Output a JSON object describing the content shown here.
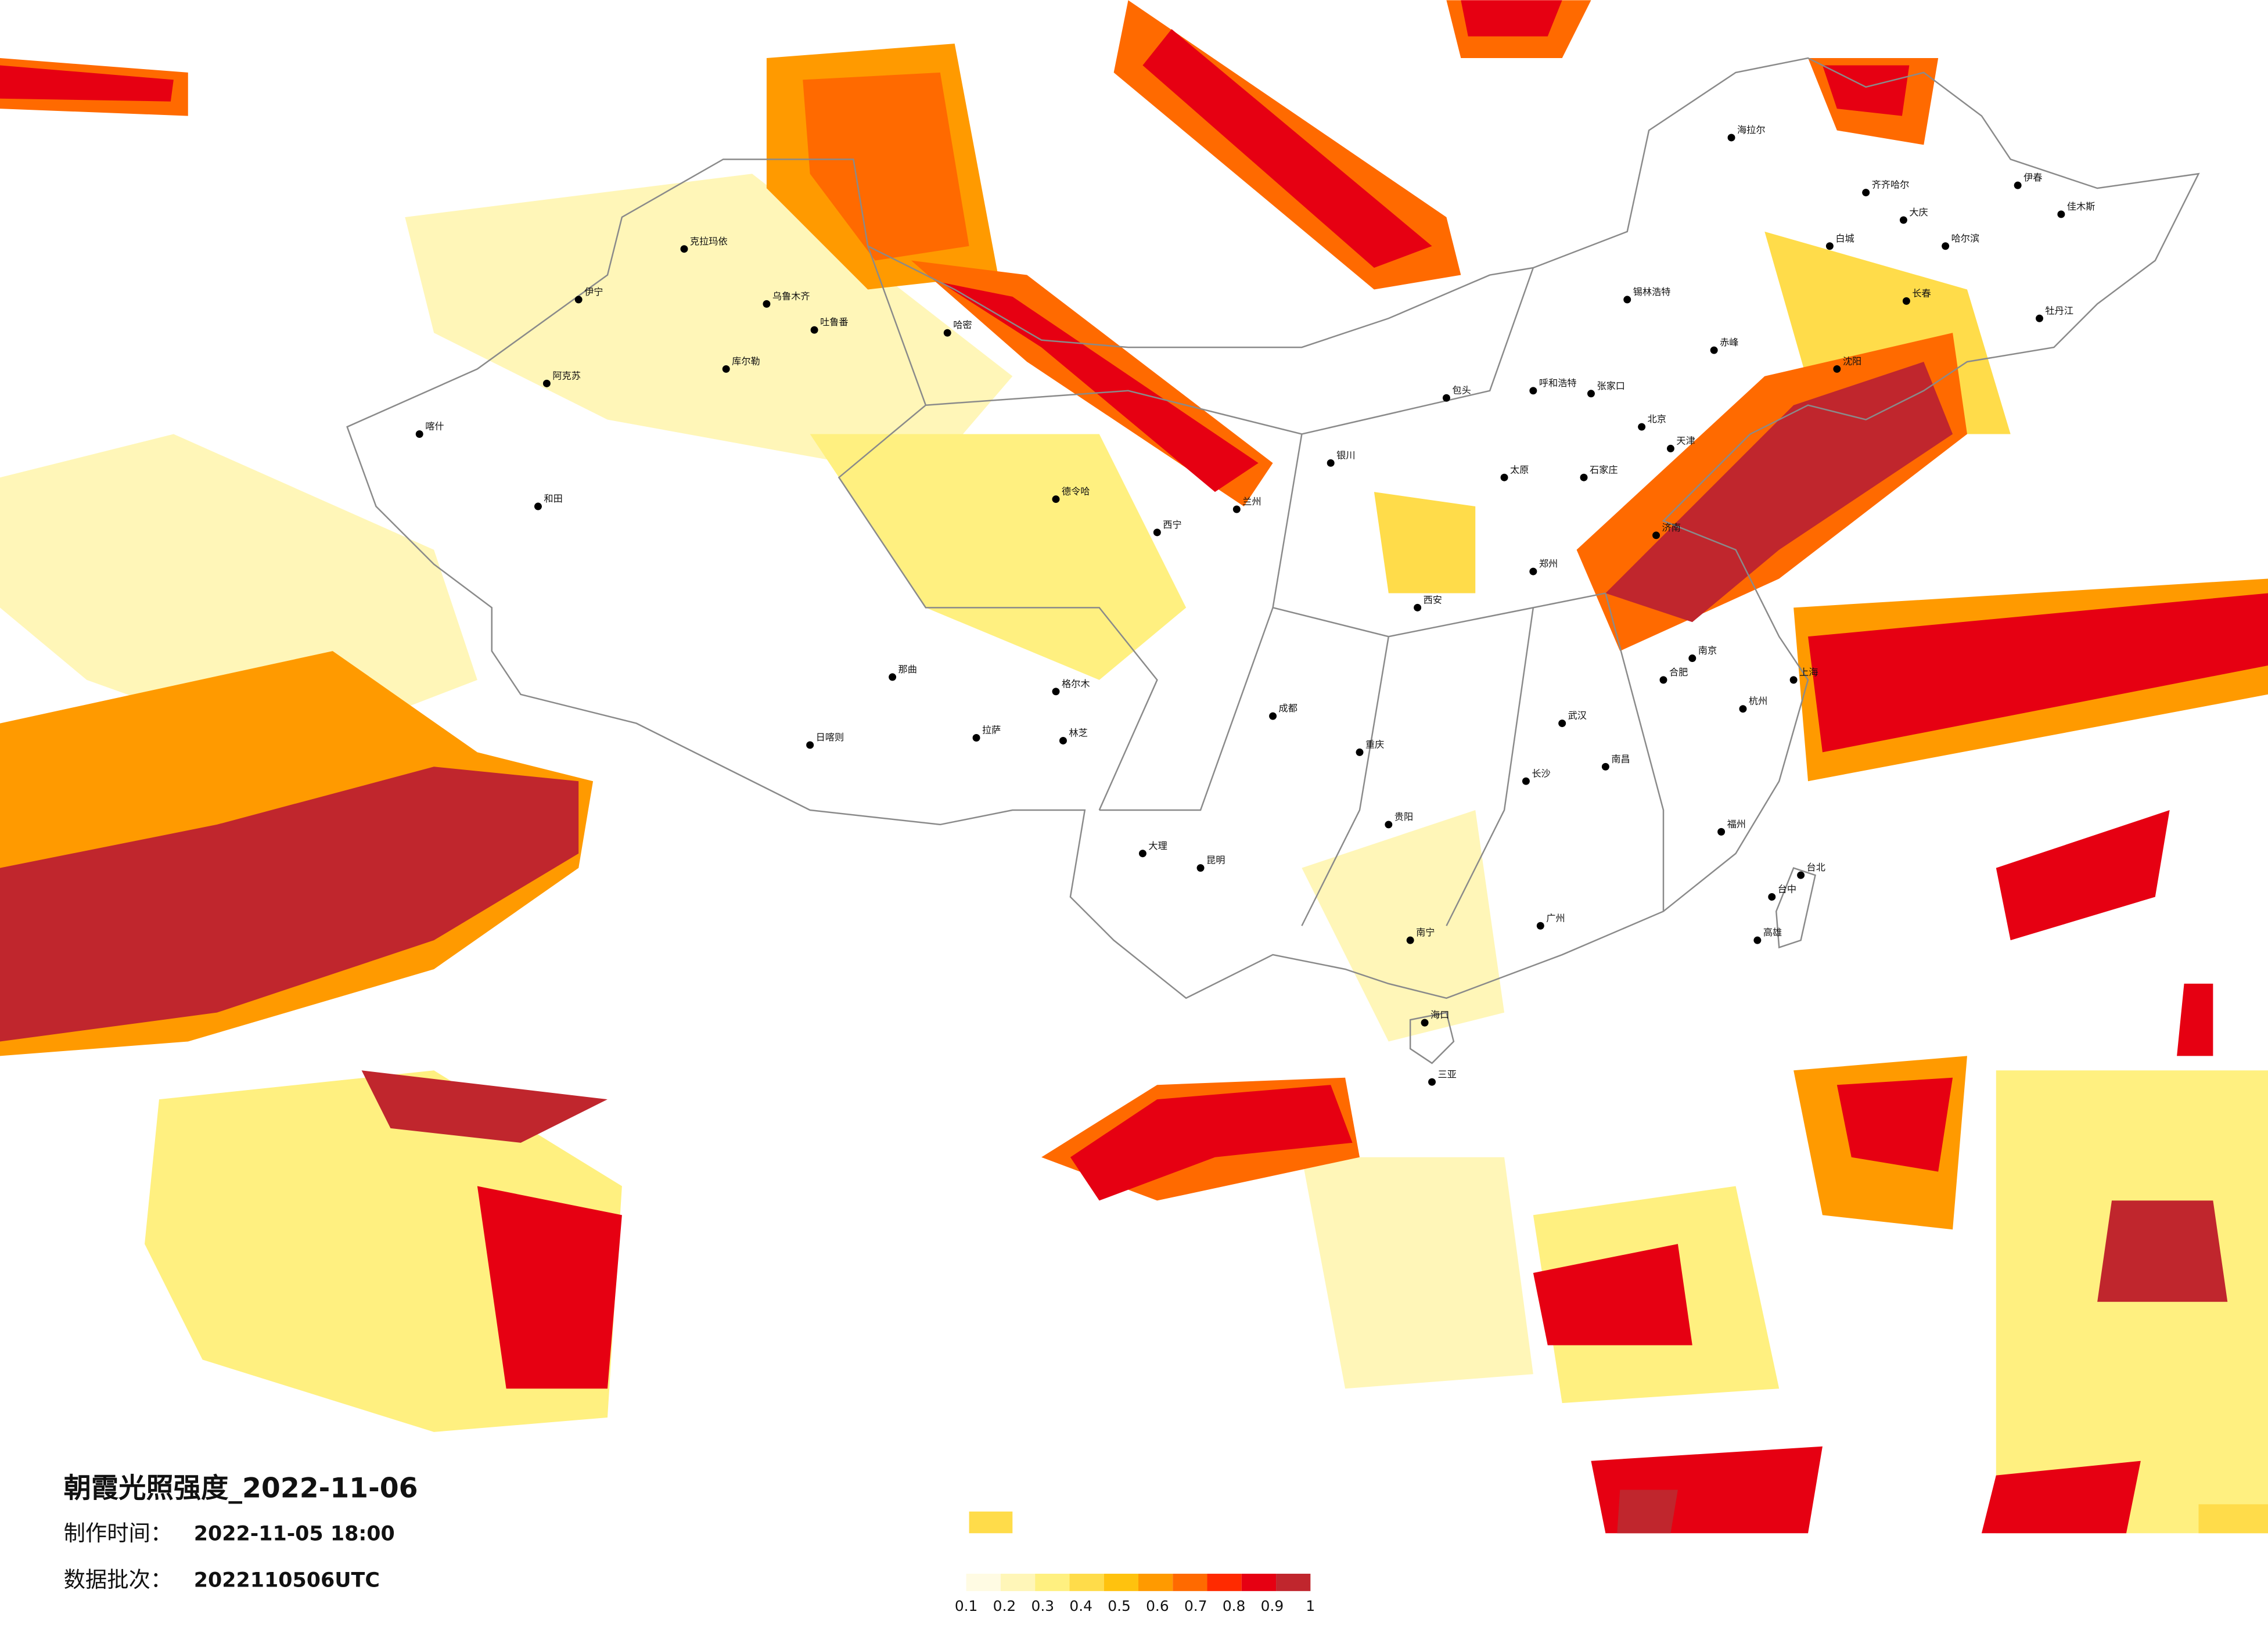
{
  "title": "朝霞光照强度_2022-11-06",
  "made_label": "制作时间：",
  "made_value": "2022-11-05 18:00",
  "batch_label": "数据批次：",
  "batch_value": "2022110506UTC",
  "legend": {
    "colors": [
      "#fffbe3",
      "#fff6b8",
      "#fff080",
      "#ffdc4a",
      "#ffc20e",
      "#ff9a00",
      "#ff6a00",
      "#ff2a00",
      "#e60012",
      "#c0262d"
    ],
    "ticks": [
      0.1,
      0.2,
      0.3,
      0.4,
      0.5,
      0.6,
      0.7,
      0.8,
      0.9,
      1
    ]
  },
  "cities": [
    "克拉玛依",
    "乌鲁木齐",
    "吐鲁番",
    "哈密",
    "库尔勒",
    "阿克苏",
    "喀什",
    "和田",
    "伊宁",
    "海拉尔",
    "齐齐哈尔",
    "大庆",
    "哈尔滨",
    "伊春",
    "佳木斯",
    "牡丹江",
    "长春",
    "白城",
    "锡林浩特",
    "呼和浩特",
    "包头",
    "张家口",
    "赤峰",
    "银川",
    "兰州",
    "西宁",
    "德令哈",
    "格尔木",
    "拉萨",
    "日喀则",
    "那曲",
    "林芝",
    "成都",
    "重庆",
    "贵阳",
    "昆明",
    "大理",
    "南宁",
    "海口",
    "三亚",
    "广州",
    "福州",
    "台北",
    "台中",
    "高雄",
    "杭州",
    "上海",
    "南京",
    "武汉",
    "长沙",
    "南昌",
    "合肥",
    "郑州",
    "西安",
    "太原",
    "石家庄",
    "北京",
    "天津",
    "济南",
    "沈阳"
  ]
}
